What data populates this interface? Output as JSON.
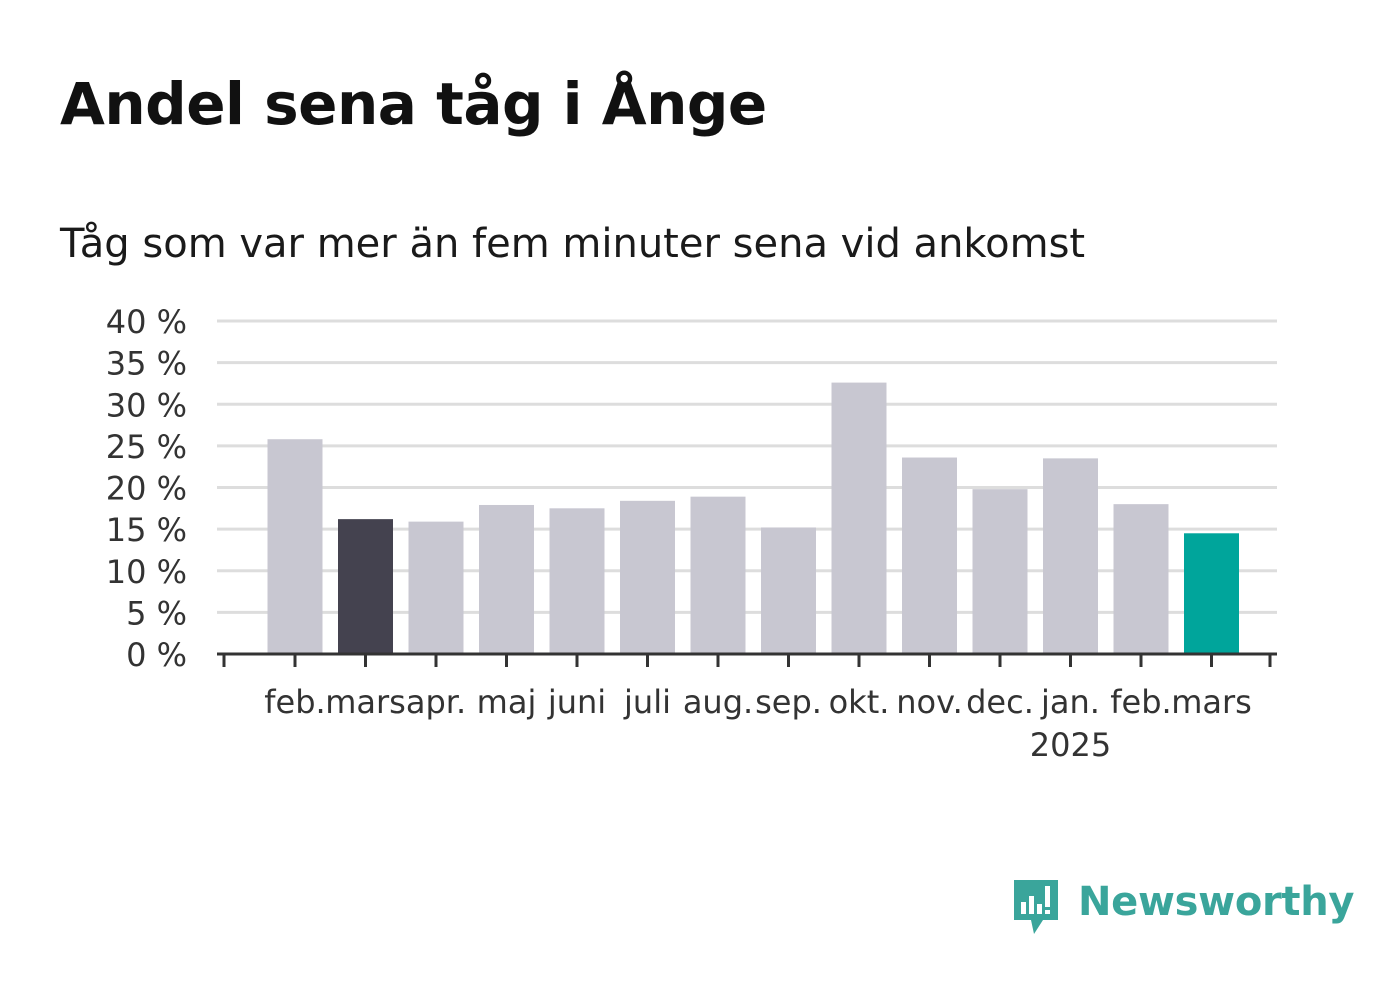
{
  "header": {
    "title": "Andel sena tåg i Ånge",
    "subtitle": "Tåg som var mer än fem minuter sena vid ankomst"
  },
  "brand": {
    "name": "Newsworthy",
    "icon": "newsworthy-logo-icon",
    "color": "#3aa59b"
  },
  "colors": {
    "default_bar": "#c8c7d1",
    "highlight_bar_previous": "#44424f",
    "highlight_bar_current": "#00a59b",
    "grid": "#dddddd",
    "axis": "#333333",
    "text": "#333333"
  },
  "chart_data": {
    "type": "bar",
    "title": "Andel sena tåg i Ånge",
    "subtitle": "Tåg som var mer än fem minuter sena vid ankomst",
    "categories": [
      "feb.",
      "mars",
      "apr.",
      "maj",
      "juni",
      "juli",
      "aug.",
      "sep.",
      "okt.",
      "nov.",
      "dec.",
      "jan.",
      "feb.",
      "mars"
    ],
    "year_labels": [
      {
        "category_index": 11,
        "label": "2025"
      }
    ],
    "values": [
      25.8,
      16.2,
      15.9,
      17.9,
      17.5,
      18.4,
      18.9,
      15.2,
      32.6,
      23.6,
      19.8,
      23.5,
      18.0,
      14.5
    ],
    "bar_colors": [
      "#c8c7d1",
      "#44424f",
      "#c8c7d1",
      "#c8c7d1",
      "#c8c7d1",
      "#c8c7d1",
      "#c8c7d1",
      "#c8c7d1",
      "#c8c7d1",
      "#c8c7d1",
      "#c8c7d1",
      "#c8c7d1",
      "#c8c7d1",
      "#00a59b"
    ],
    "xlabel": "",
    "ylabel": "",
    "ylim": [
      0,
      40
    ],
    "yticks": [
      0,
      5,
      10,
      15,
      20,
      25,
      30,
      35,
      40
    ],
    "ytick_labels": [
      "0 %",
      "5 %",
      "10 %",
      "15 %",
      "20 %",
      "25 %",
      "30 %",
      "35 %",
      "40 %"
    ],
    "grid": true,
    "legend": "none"
  }
}
